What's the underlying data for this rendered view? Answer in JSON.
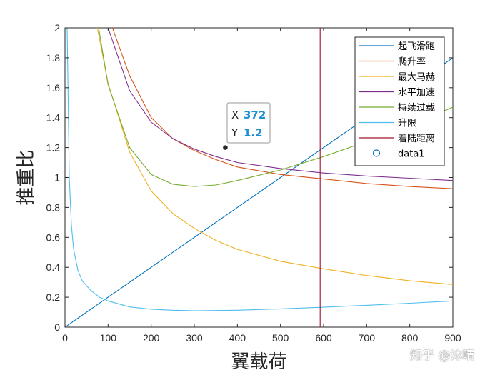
{
  "chart_data": {
    "type": "line",
    "title": "",
    "xlabel": "翼载荷",
    "ylabel": "推重比",
    "xlim": [
      0,
      900
    ],
    "ylim": [
      0,
      2
    ],
    "xticks": [
      0,
      100,
      200,
      300,
      400,
      500,
      600,
      700,
      800,
      900
    ],
    "yticks": [
      0,
      0.2,
      0.4,
      0.6,
      0.8,
      1,
      1.2,
      1.4,
      1.6,
      1.8,
      2
    ],
    "ytick_labels": [
      "0",
      "0.2",
      "0.4",
      "0.6",
      "0.8",
      "1",
      "1.2",
      "1.4",
      "1.6",
      "1.8",
      "2"
    ],
    "grid": false,
    "legend_position": "top-right",
    "series": [
      {
        "name": "起飞滑跑",
        "color": "#0072BD",
        "points": [
          [
            0,
            0
          ],
          [
            100,
            0.2
          ],
          [
            200,
            0.4
          ],
          [
            300,
            0.6
          ],
          [
            400,
            0.8
          ],
          [
            500,
            1.0
          ],
          [
            600,
            1.2
          ],
          [
            700,
            1.4
          ],
          [
            900,
            1.8
          ]
        ]
      },
      {
        "name": "爬升率",
        "color": "#D95319",
        "points": [
          [
            110,
            2.0
          ],
          [
            150,
            1.68
          ],
          [
            200,
            1.4
          ],
          [
            250,
            1.26
          ],
          [
            300,
            1.18
          ],
          [
            350,
            1.12
          ],
          [
            400,
            1.07
          ],
          [
            500,
            1.02
          ],
          [
            600,
            0.99
          ],
          [
            700,
            0.96
          ],
          [
            800,
            0.94
          ],
          [
            900,
            0.925
          ]
        ]
      },
      {
        "name": "最大马赫",
        "color": "#EDB120",
        "points": [
          [
            75,
            2.0
          ],
          [
            100,
            1.63
          ],
          [
            150,
            1.17
          ],
          [
            200,
            0.91
          ],
          [
            250,
            0.76
          ],
          [
            300,
            0.66
          ],
          [
            350,
            0.58
          ],
          [
            400,
            0.52
          ],
          [
            500,
            0.44
          ],
          [
            600,
            0.39
          ],
          [
            700,
            0.345
          ],
          [
            800,
            0.31
          ],
          [
            900,
            0.285
          ]
        ]
      },
      {
        "name": "水平加速",
        "color": "#7E2F8E",
        "points": [
          [
            100,
            2.0
          ],
          [
            150,
            1.58
          ],
          [
            200,
            1.37
          ],
          [
            250,
            1.26
          ],
          [
            300,
            1.19
          ],
          [
            350,
            1.14
          ],
          [
            400,
            1.1
          ],
          [
            500,
            1.06
          ],
          [
            600,
            1.03
          ],
          [
            700,
            1.01
          ],
          [
            800,
            0.995
          ],
          [
            900,
            0.98
          ]
        ]
      },
      {
        "name": "持续过载",
        "color": "#77AC30",
        "points": [
          [
            78,
            2.0
          ],
          [
            100,
            1.62
          ],
          [
            150,
            1.2
          ],
          [
            200,
            1.02
          ],
          [
            250,
            0.955
          ],
          [
            300,
            0.94
          ],
          [
            350,
            0.95
          ],
          [
            400,
            0.98
          ],
          [
            500,
            1.05
          ],
          [
            600,
            1.14
          ],
          [
            700,
            1.24
          ],
          [
            800,
            1.35
          ],
          [
            900,
            1.47
          ]
        ]
      },
      {
        "name": "升限",
        "color": "#4DBEEE",
        "points": [
          [
            5,
            2.0
          ],
          [
            10,
            1.0
          ],
          [
            15,
            0.68
          ],
          [
            20,
            0.52
          ],
          [
            30,
            0.38
          ],
          [
            40,
            0.31
          ],
          [
            60,
            0.245
          ],
          [
            80,
            0.2
          ],
          [
            100,
            0.175
          ],
          [
            150,
            0.135
          ],
          [
            200,
            0.12
          ],
          [
            250,
            0.113
          ],
          [
            300,
            0.11
          ],
          [
            350,
            0.111
          ],
          [
            400,
            0.113
          ],
          [
            500,
            0.122
          ],
          [
            600,
            0.133
          ],
          [
            700,
            0.146
          ],
          [
            800,
            0.16
          ],
          [
            900,
            0.175
          ]
        ]
      },
      {
        "name": "着陆距离",
        "color": "#A2142F",
        "points": [
          [
            592,
            0
          ],
          [
            592,
            2
          ]
        ]
      },
      {
        "name": "data1",
        "color": "#0072BD",
        "marker": "circle",
        "points": []
      }
    ],
    "datatip": {
      "x_label": "X",
      "x_value": "372",
      "y_label": "Y",
      "y_value": "1.2",
      "x": 372,
      "y": 1.2
    }
  },
  "watermark": "知乎 @沐晴"
}
